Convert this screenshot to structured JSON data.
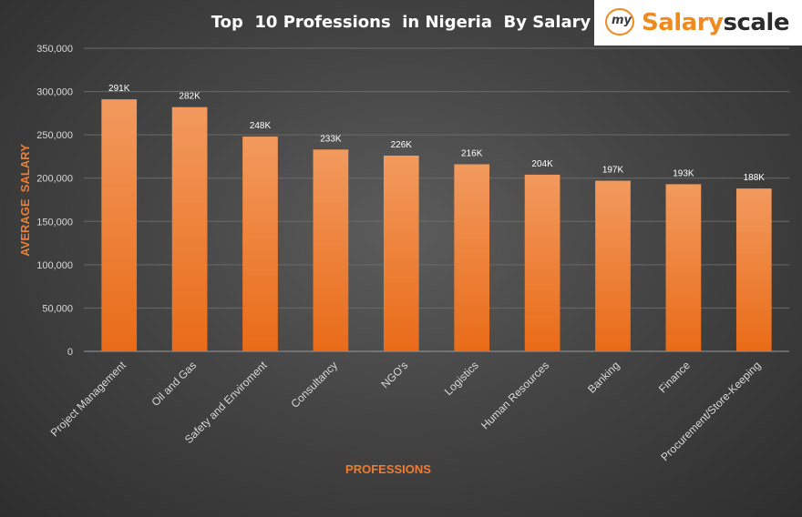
{
  "chart_data": {
    "type": "bar",
    "title": "Top  10 Professions  in Nigeria  By Salary",
    "xlabel": "PROFESSIONS",
    "ylabel": "AVERAGE  SALARY",
    "categories": [
      "Project Management",
      "Oil and Gas",
      "Safety and Enviroment",
      "Consultancy",
      "NGO's",
      "Logistics",
      "Human Resources",
      "Banking",
      "Finance",
      "Procurement/Store-Keeping"
    ],
    "values": [
      291000,
      282000,
      248000,
      233000,
      226000,
      216000,
      204000,
      197000,
      193000,
      188000
    ],
    "data_labels": [
      "291K",
      "282K",
      "248K",
      "233K",
      "226K",
      "216K",
      "204K",
      "197K",
      "193K",
      "188K"
    ],
    "ylim": [
      0,
      350000
    ],
    "yticks": [
      0,
      50000,
      100000,
      150000,
      200000,
      250000,
      300000,
      350000
    ],
    "ytick_labels": [
      "0",
      "50,000",
      "100,000",
      "150,000",
      "200,000",
      "250,000",
      "300,000",
      "350,000"
    ],
    "grid": true,
    "legend": "none"
  },
  "logo": {
    "my": "my",
    "salary": "Salary",
    "scale": "scale"
  },
  "colors": {
    "bar_top": "#f29a5e",
    "bar_bottom": "#e96b18",
    "accent": "#f08a20",
    "axis_title": "#ee7d33",
    "text": "#ffffff",
    "tick_text": "#d9d9d9",
    "grid": "#6a6a6a"
  }
}
